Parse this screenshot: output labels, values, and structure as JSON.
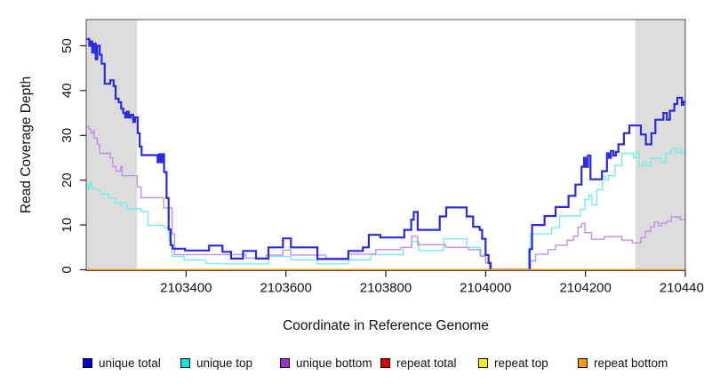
{
  "chart_data": {
    "type": "line",
    "subtype": "step",
    "title": "",
    "xlabel": "Coordinate in Reference Genome",
    "ylabel": "Read Coverage Depth",
    "xlim": [
      2103200,
      2104400
    ],
    "ylim": [
      0,
      56
    ],
    "xticks": [
      2103400,
      2103600,
      2103800,
      2104000,
      2104200,
      2104400
    ],
    "yticks": [
      0,
      10,
      20,
      30,
      40,
      50
    ],
    "grid": false,
    "legend_position": "bottom",
    "shaded_regions": {
      "color": "#dcdcdc",
      "ranges": [
        [
          2103200,
          2103302
        ],
        [
          2104300,
          2104400
        ]
      ]
    },
    "series": [
      {
        "name": "unique total",
        "line_color": "#2a2ade",
        "swatch_color": "#0000cc",
        "width": 2.2,
        "z": 3,
        "points": [
          [
            2103200,
            51.5
          ],
          [
            2103206,
            50
          ],
          [
            2103209,
            51
          ],
          [
            2103212,
            48.5
          ],
          [
            2103215,
            50.5
          ],
          [
            2103219,
            47
          ],
          [
            2103222,
            50
          ],
          [
            2103227,
            48
          ],
          [
            2103231,
            46
          ],
          [
            2103237,
            41.5
          ],
          [
            2103248,
            42.3
          ],
          [
            2103255,
            41
          ],
          [
            2103259,
            38.2
          ],
          [
            2103265,
            37.4
          ],
          [
            2103270,
            36
          ],
          [
            2103274,
            35
          ],
          [
            2103278,
            34
          ],
          [
            2103281,
            35.3
          ],
          [
            2103285,
            34
          ],
          [
            2103289,
            34.6
          ],
          [
            2103294,
            33
          ],
          [
            2103298,
            34
          ],
          [
            2103303,
            30.5
          ],
          [
            2103307,
            27.5
          ],
          [
            2103311,
            25.6
          ],
          [
            2103343,
            24
          ],
          [
            2103346,
            25.8
          ],
          [
            2103349,
            24
          ],
          [
            2103352,
            25.8
          ],
          [
            2103356,
            21.8
          ],
          [
            2103361,
            16
          ],
          [
            2103365,
            9
          ],
          [
            2103369,
            5.5
          ],
          [
            2103373,
            4.7
          ],
          [
            2103398,
            4.3
          ],
          [
            2103446,
            5.4
          ],
          [
            2103473,
            4
          ],
          [
            2103490,
            2.5
          ],
          [
            2103514,
            4.2
          ],
          [
            2103540,
            2.5
          ],
          [
            2103565,
            5
          ],
          [
            2103594,
            7
          ],
          [
            2103610,
            5
          ],
          [
            2103663,
            2.4
          ],
          [
            2103725,
            4.2
          ],
          [
            2103754,
            5
          ],
          [
            2103766,
            7.8
          ],
          [
            2103789,
            7.2
          ],
          [
            2103837,
            8.9
          ],
          [
            2103851,
            11.2
          ],
          [
            2103856,
            12.9
          ],
          [
            2103864,
            8.9
          ],
          [
            2103908,
            11.9
          ],
          [
            2103921,
            13.9
          ],
          [
            2103962,
            11.9
          ],
          [
            2103975,
            9.6
          ],
          [
            2103988,
            8.9
          ],
          [
            2103993,
            6.9
          ],
          [
            2104000,
            3.3
          ],
          [
            2104006,
            1.5
          ],
          [
            2104010,
            0
          ],
          [
            2104088,
            4.6
          ],
          [
            2104093,
            10
          ],
          [
            2104118,
            12
          ],
          [
            2104140,
            14
          ],
          [
            2104166,
            16.5
          ],
          [
            2104180,
            19
          ],
          [
            2104192,
            23
          ],
          [
            2104197,
            25
          ],
          [
            2104201,
            23
          ],
          [
            2104205,
            25.5
          ],
          [
            2104210,
            20.2
          ],
          [
            2104233,
            22
          ],
          [
            2104243,
            26
          ],
          [
            2104247,
            25
          ],
          [
            2104251,
            26.5
          ],
          [
            2104256,
            25.5
          ],
          [
            2104261,
            26.3
          ],
          [
            2104266,
            28
          ],
          [
            2104277,
            30.5
          ],
          [
            2104288,
            32.2
          ],
          [
            2104311,
            30.2
          ],
          [
            2104321,
            28
          ],
          [
            2104332,
            30.5
          ],
          [
            2104340,
            33.5
          ],
          [
            2104356,
            35
          ],
          [
            2104363,
            33.5
          ],
          [
            2104369,
            35.5
          ],
          [
            2104378,
            37
          ],
          [
            2104384,
            38.4
          ],
          [
            2104393,
            36.8
          ],
          [
            2104396,
            37.5
          ]
        ]
      },
      {
        "name": "unique top",
        "line_color": "#76eded",
        "swatch_color": "#00e5e5",
        "width": 1.4,
        "z": 1,
        "points": [
          [
            2103200,
            19
          ],
          [
            2103204,
            18
          ],
          [
            2103207,
            19.5
          ],
          [
            2103211,
            18.3
          ],
          [
            2103217,
            18
          ],
          [
            2103227,
            17
          ],
          [
            2103245,
            16
          ],
          [
            2103258,
            15
          ],
          [
            2103268,
            14.4
          ],
          [
            2103272,
            15
          ],
          [
            2103281,
            13.6
          ],
          [
            2103310,
            13
          ],
          [
            2103324,
            9.9
          ],
          [
            2103356,
            9.4
          ],
          [
            2103366,
            6.4
          ],
          [
            2103372,
            3
          ],
          [
            2103396,
            2.2
          ],
          [
            2103440,
            1.4
          ],
          [
            2103470,
            1.3
          ],
          [
            2103565,
            3
          ],
          [
            2103610,
            2.2
          ],
          [
            2103663,
            1.3
          ],
          [
            2103725,
            2.2
          ],
          [
            2103770,
            3.4
          ],
          [
            2103835,
            5
          ],
          [
            2103851,
            6.3
          ],
          [
            2103866,
            4.3
          ],
          [
            2103916,
            6.9
          ],
          [
            2103962,
            5
          ],
          [
            2103988,
            3.3
          ],
          [
            2104000,
            1.5
          ],
          [
            2104007,
            0
          ],
          [
            2104086,
            4.6
          ],
          [
            2104090,
            8
          ],
          [
            2104132,
            9.4
          ],
          [
            2104148,
            12
          ],
          [
            2104190,
            13.5
          ],
          [
            2104199,
            15.7
          ],
          [
            2104207,
            16.7
          ],
          [
            2104213,
            14.5
          ],
          [
            2104223,
            17.9
          ],
          [
            2104234,
            20.9
          ],
          [
            2104240,
            20
          ],
          [
            2104246,
            21
          ],
          [
            2104259,
            23.3
          ],
          [
            2104273,
            26
          ],
          [
            2104296,
            25
          ],
          [
            2104301,
            26.3
          ],
          [
            2104308,
            23.2
          ],
          [
            2104315,
            24
          ],
          [
            2104321,
            23.2
          ],
          [
            2104331,
            24.9
          ],
          [
            2104353,
            24
          ],
          [
            2104361,
            26
          ],
          [
            2104372,
            27.1
          ],
          [
            2104381,
            26.2
          ],
          [
            2104386,
            27
          ],
          [
            2104392,
            26.1
          ]
        ]
      },
      {
        "name": "unique bottom",
        "line_color": "#c38fe8",
        "swatch_color": "#9932cc",
        "width": 1.4,
        "z": 2,
        "points": [
          [
            2103200,
            32
          ],
          [
            2103205,
            31.4
          ],
          [
            2103209,
            30.5
          ],
          [
            2103213,
            31
          ],
          [
            2103216,
            29.4
          ],
          [
            2103222,
            28
          ],
          [
            2103227,
            26
          ],
          [
            2103248,
            25
          ],
          [
            2103253,
            23
          ],
          [
            2103260,
            22
          ],
          [
            2103269,
            23
          ],
          [
            2103272,
            21
          ],
          [
            2103302,
            18.5
          ],
          [
            2103310,
            16.1
          ],
          [
            2103355,
            13.8
          ],
          [
            2103372,
            8
          ],
          [
            2103377,
            3.4
          ],
          [
            2103520,
            2.6
          ],
          [
            2103560,
            3.3
          ],
          [
            2103594,
            4.4
          ],
          [
            2103610,
            3.3
          ],
          [
            2103680,
            2.6
          ],
          [
            2103725,
            3.5
          ],
          [
            2103780,
            4.5
          ],
          [
            2103830,
            5
          ],
          [
            2103852,
            7.5
          ],
          [
            2103864,
            5.6
          ],
          [
            2103920,
            5
          ],
          [
            2103965,
            4.5
          ],
          [
            2103990,
            3
          ],
          [
            2104000,
            1.5
          ],
          [
            2104008,
            0
          ],
          [
            2104090,
            2
          ],
          [
            2104100,
            3.5
          ],
          [
            2104125,
            4.5
          ],
          [
            2104140,
            5.5
          ],
          [
            2104163,
            6.6
          ],
          [
            2104176,
            7.5
          ],
          [
            2104185,
            9.5
          ],
          [
            2104192,
            10.3
          ],
          [
            2104199,
            8.3
          ],
          [
            2104212,
            6.8
          ],
          [
            2104238,
            7.4
          ],
          [
            2104273,
            6.6
          ],
          [
            2104294,
            6
          ],
          [
            2104311,
            7.2
          ],
          [
            2104320,
            8.6
          ],
          [
            2104330,
            9.6
          ],
          [
            2104338,
            10.6
          ],
          [
            2104346,
            9.8
          ],
          [
            2104352,
            10.4
          ],
          [
            2104363,
            10.8
          ],
          [
            2104372,
            11.8
          ],
          [
            2104390,
            11.2
          ]
        ]
      },
      {
        "name": "repeat total",
        "line_color": "#dd0000",
        "swatch_color": "#dd0000",
        "width": 1.2,
        "z": 4,
        "points": [
          [
            2103200,
            0
          ]
        ]
      },
      {
        "name": "repeat top",
        "line_color": "#ffee00",
        "swatch_color": "#ffee00",
        "width": 1.2,
        "z": 5,
        "points": [
          [
            2103200,
            0
          ]
        ]
      },
      {
        "name": "repeat bottom",
        "line_color": "#ff9900",
        "swatch_color": "#ff9900",
        "width": 1.6,
        "z": 6,
        "points": [
          [
            2103200,
            0
          ]
        ]
      }
    ]
  }
}
